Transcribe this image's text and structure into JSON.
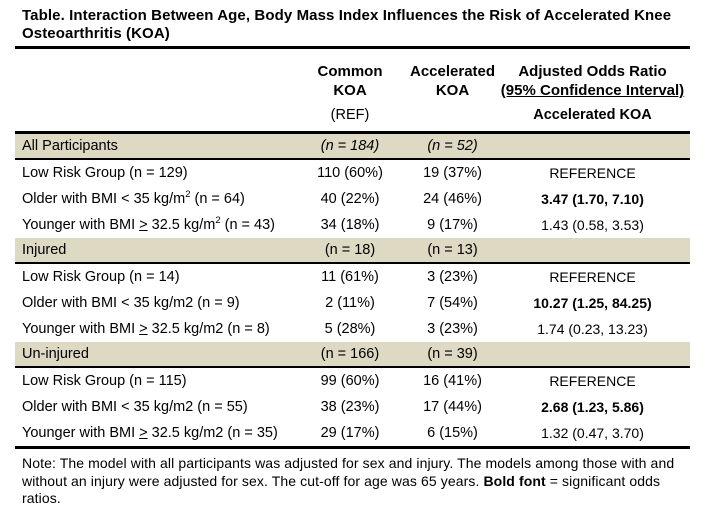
{
  "title": {
    "line1": "Table. Interaction Between Age, Body Mass Index Influences the Risk of Accelerated Knee",
    "line2": "Osteoarthritis (KOA)"
  },
  "table": {
    "header": {
      "common": [
        "Common",
        "KOA"
      ],
      "accelerated": [
        "Accelerated",
        "KOA"
      ],
      "adjusted": [
        "Adjusted Odds Ratio",
        "(95% Confidence Interval)"
      ],
      "ref": "(REF)",
      "sub_accelerated": "Accelerated KOA"
    },
    "rows": [
      {
        "label": [
          {
            "t": "All Participants"
          }
        ],
        "c2": [
          {
            "t": "(n = 184)",
            "s": "i"
          }
        ],
        "c3": [
          {
            "t": "(n = 52)",
            "s": "i"
          }
        ],
        "c4": []
      },
      {
        "label": [
          {
            "t": "Low Risk Group (n = 129)"
          }
        ],
        "c2": [
          {
            "t": "110 (60%)"
          }
        ],
        "c3": [
          {
            "t": "19 (37%)"
          }
        ],
        "c4": [
          {
            "t": "REFERENCE"
          }
        ]
      },
      {
        "label": [
          {
            "t": "Older with BMI < 35 kg/m"
          },
          {
            "t": "2",
            "s": "sup"
          },
          {
            "t": " (n = 64)"
          }
        ],
        "c2": [
          {
            "t": "40 (22%)"
          }
        ],
        "c3": [
          {
            "t": "24 (46%)"
          }
        ],
        "c4": [
          {
            "t": "3.47 (1.70, 7.10)",
            "s": "b"
          }
        ]
      },
      {
        "label": [
          {
            "t": "Younger with BMI "
          },
          {
            "t": ">",
            "s": "u"
          },
          {
            "t": " 32.5 kg/m"
          },
          {
            "t": "2",
            "s": "sup"
          },
          {
            "t": " (n = 43)"
          }
        ],
        "c2": [
          {
            "t": "34 (18%)"
          }
        ],
        "c3": [
          {
            "t": "9 (17%)"
          }
        ],
        "c4": [
          {
            "t": "1.43 (0.58, 3.53)"
          }
        ]
      },
      {
        "label": [
          {
            "t": "Injured"
          }
        ],
        "c2": [
          {
            "t": "(n = 18)"
          }
        ],
        "c3": [
          {
            "t": "(n = 13)"
          }
        ],
        "c4": []
      },
      {
        "label": [
          {
            "t": "Low Risk Group (n = 14)"
          }
        ],
        "c2": [
          {
            "t": "11 (61%)"
          }
        ],
        "c3": [
          {
            "t": "3 (23%)"
          }
        ],
        "c4": [
          {
            "t": "REFERENCE"
          }
        ]
      },
      {
        "label": [
          {
            "t": "Older with BMI < 35 kg/m2 (n = 9)"
          }
        ],
        "c2": [
          {
            "t": "2 (11%)"
          }
        ],
        "c3": [
          {
            "t": "7 (54%)"
          }
        ],
        "c4": [
          {
            "t": "10.27 (1.25, 84.25)",
            "s": "b"
          }
        ]
      },
      {
        "label": [
          {
            "t": "Younger with BMI "
          },
          {
            "t": ">",
            "s": "u"
          },
          {
            "t": " 32.5 kg/m2 (n = 8)"
          }
        ],
        "c2": [
          {
            "t": "5 (28%)"
          }
        ],
        "c3": [
          {
            "t": "3 (23%)"
          }
        ],
        "c4": [
          {
            "t": "1.74 (0.23, 13.23)"
          }
        ]
      },
      {
        "label": [
          {
            "t": "Un-injured"
          }
        ],
        "c2": [
          {
            "t": "(n = 166)"
          }
        ],
        "c3": [
          {
            "t": "(n = 39)"
          }
        ],
        "c4": []
      },
      {
        "label": [
          {
            "t": "Low Risk Group (n = 115)"
          }
        ],
        "c2": [
          {
            "t": "99 (60%)"
          }
        ],
        "c3": [
          {
            "t": "16 (41%)"
          }
        ],
        "c4": [
          {
            "t": "REFERENCE"
          }
        ]
      },
      {
        "label": [
          {
            "t": "Older with BMI < 35 kg/m2 (n = 55)"
          }
        ],
        "c2": [
          {
            "t": "38 (23%)"
          }
        ],
        "c3": [
          {
            "t": "17 (44%)"
          }
        ],
        "c4": [
          {
            "t": "2.68 (1.23, 5.86)",
            "s": "b"
          }
        ]
      },
      {
        "label": [
          {
            "t": "Younger with BMI "
          },
          {
            "t": ">",
            "s": "u"
          },
          {
            "t": " 32.5 kg/m2 (n = 35)"
          }
        ],
        "c2": [
          {
            "t": "29 (17%)"
          }
        ],
        "c3": [
          {
            "t": "6 (15%)"
          }
        ],
        "c4": [
          {
            "t": "1.32 (0.47, 3.70)"
          }
        ]
      }
    ]
  },
  "note": {
    "parts": [
      {
        "t": "Note: The model with all participants was adjusted for sex and injury. The models among those with and without an injury were adjusted for sex. The cut-off for age was 65 years. "
      },
      {
        "t": "Bold font",
        "s": "b"
      },
      {
        "t": " = significant odds ratios."
      }
    ]
  },
  "colors": {
    "section_row_bg": "#DDD9C3",
    "rule": "#000000",
    "text": "#000000",
    "background": "#FFFFFF"
  }
}
